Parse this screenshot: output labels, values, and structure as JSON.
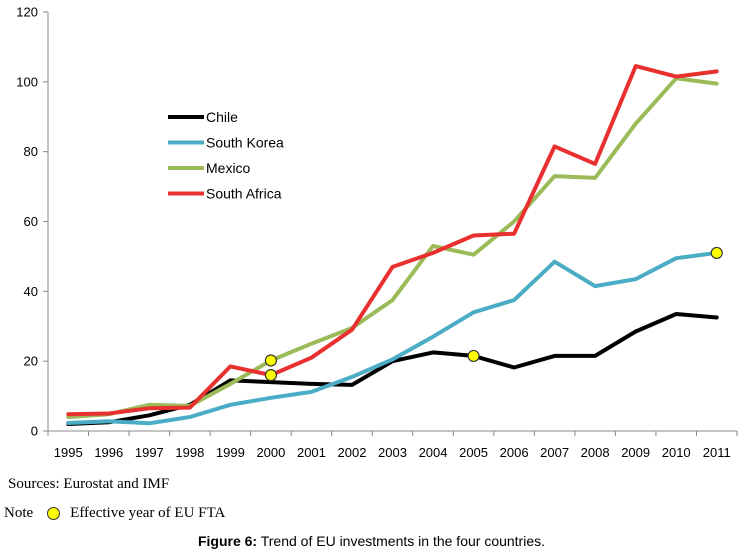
{
  "chart_data": {
    "type": "line",
    "title": "",
    "xlabel": "",
    "ylabel": "",
    "x": [
      "1995",
      "1996",
      "1997",
      "1998",
      "1999",
      "2000",
      "2001",
      "2002",
      "2003",
      "2004",
      "2005",
      "2006",
      "2007",
      "2008",
      "2009",
      "2010",
      "2011"
    ],
    "ylim": [
      0,
      120
    ],
    "yticks": [
      0,
      20,
      40,
      60,
      80,
      100,
      120
    ],
    "grid": false,
    "legend_position": "upper-left",
    "series": [
      {
        "name": "Chile",
        "color": "#000000",
        "values": [
          2.0,
          2.5,
          4.5,
          7.5,
          14.5,
          14.0,
          13.5,
          13.2,
          20.0,
          22.5,
          21.5,
          18.2,
          21.5,
          21.5,
          28.5,
          33.5,
          32.5
        ]
      },
      {
        "name": "South Korea",
        "color": "#4bacc6",
        "values": [
          2.3,
          2.8,
          2.2,
          4.0,
          7.5,
          9.5,
          11.2,
          15.5,
          20.5,
          27.0,
          34.0,
          37.5,
          48.5,
          41.5,
          43.5,
          49.5,
          51.0
        ]
      },
      {
        "name": "Mexico",
        "color": "#9bbb59",
        "values": [
          4.0,
          4.8,
          7.5,
          7.2,
          13.5,
          20.2,
          25.0,
          29.5,
          37.5,
          53.0,
          50.5,
          60.0,
          73.0,
          72.5,
          88.0,
          101.0,
          99.5
        ]
      },
      {
        "name": "South Africa",
        "color": "#e8302f",
        "values": [
          4.8,
          5.0,
          6.5,
          6.7,
          18.5,
          16.0,
          21.0,
          29.0,
          47.0,
          51.0,
          56.0,
          56.5,
          81.5,
          76.5,
          104.5,
          101.5,
          103.0
        ]
      }
    ],
    "fta_markers": [
      {
        "series": "Mexico",
        "x": "2000",
        "y": 20.2
      },
      {
        "series": "South Africa",
        "x": "2000",
        "y": 16.0
      },
      {
        "series": "Chile",
        "x": "2005",
        "y": 21.5
      },
      {
        "series": "South Korea",
        "x": "2011",
        "y": 51.0
      }
    ],
    "marker_color": "#ffff00"
  },
  "notes": {
    "sources": "Sources: Eurostat and IMF",
    "note_label": "Note",
    "note_text": "Effective year of EU FTA"
  },
  "caption": {
    "label": "Figure 6:",
    "text": " Trend of EU investments in the four countries."
  }
}
